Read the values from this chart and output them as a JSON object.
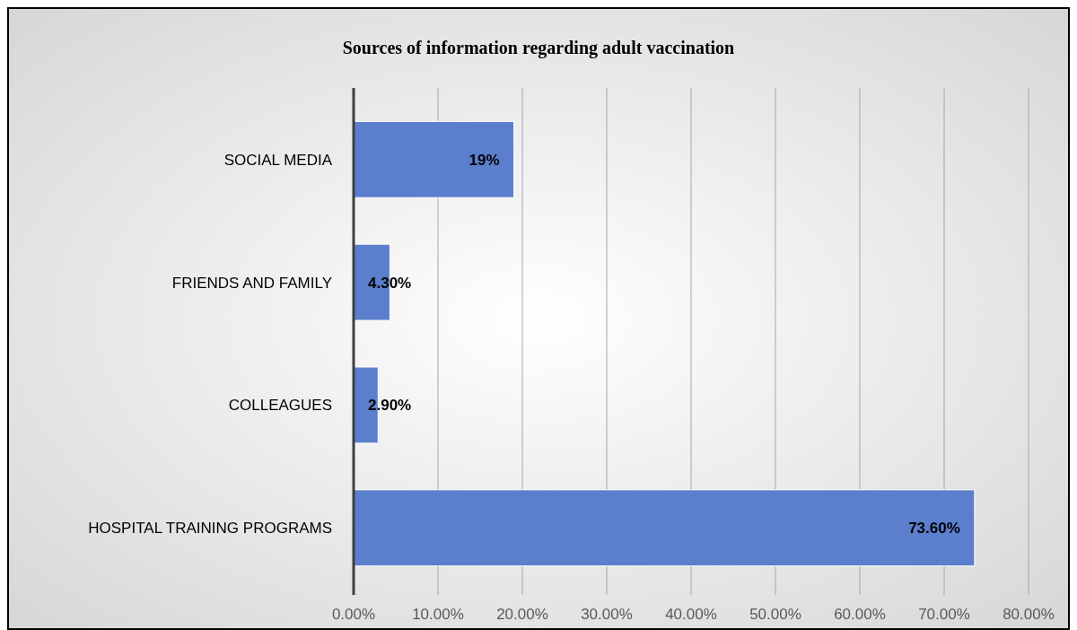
{
  "chart_data": {
    "type": "bar",
    "orientation": "horizontal",
    "title": "Sources of information regarding adult vaccination",
    "categories": [
      "SOCIAL MEDIA",
      "FRIENDS AND FAMILY",
      "COLLEAGUES",
      "HOSPITAL TRAINING PROGRAMS"
    ],
    "values": [
      19,
      4.3,
      2.9,
      73.6
    ],
    "value_labels": [
      "19%",
      "4.30%",
      "2.90%",
      "73.60%"
    ],
    "color": "#5b7fcc",
    "xlim": [
      0,
      80
    ],
    "xticks": [
      {
        "value": 0,
        "label": "0.00%"
      },
      {
        "value": 10,
        "label": "10.00%"
      },
      {
        "value": 20,
        "label": "20.00%"
      },
      {
        "value": 30,
        "label": "30.00%"
      },
      {
        "value": 40,
        "label": "40.00%"
      },
      {
        "value": 50,
        "label": "50.00%"
      },
      {
        "value": 60,
        "label": "60.00%"
      },
      {
        "value": 70,
        "label": "70.00%"
      },
      {
        "value": 80,
        "label": "80.00%"
      }
    ],
    "grid": "x"
  }
}
